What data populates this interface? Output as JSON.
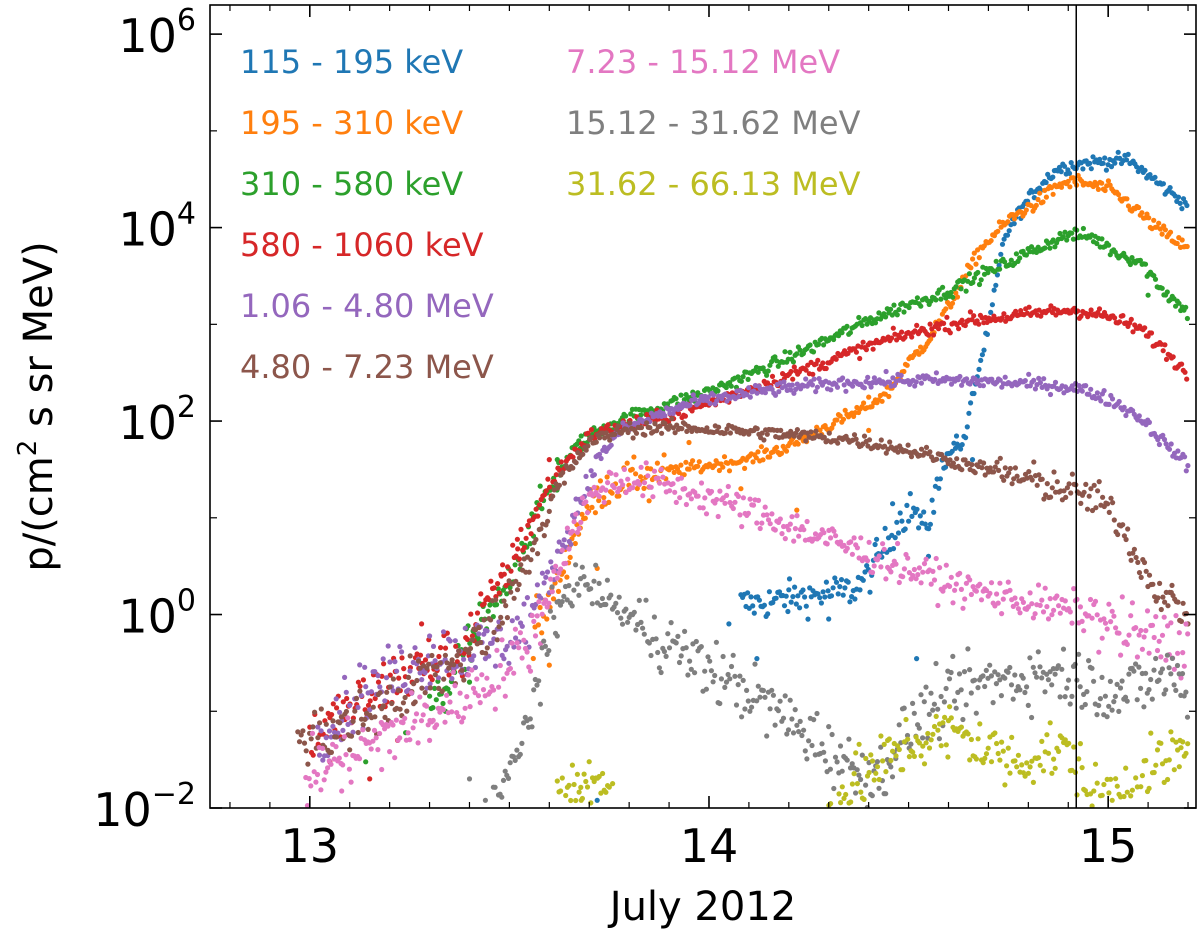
{
  "chart_data": {
    "type": "scatter",
    "title": "",
    "xlabel": "July 2012",
    "ylabel": "p/(cm² s sr MeV)",
    "ylabel_parts": {
      "before": "p/(cm",
      "sup": "2",
      "after": " s sr MeV)"
    },
    "xlim": [
      12.75,
      15.22
    ],
    "ylim": [
      0.01,
      2000000
    ],
    "yscale": "log",
    "x_ticks": [
      {
        "value": 13,
        "label": "13"
      },
      {
        "value": 14,
        "label": "14"
      },
      {
        "value": 15,
        "label": "15"
      }
    ],
    "y_ticks": [
      {
        "value": 0.01,
        "base": "10",
        "exp": "−2"
      },
      {
        "value": 1,
        "base": "10",
        "exp": "0"
      },
      {
        "value": 100,
        "base": "10",
        "exp": "2"
      },
      {
        "value": 10000,
        "base": "10",
        "exp": "4"
      },
      {
        "value": 1000000,
        "base": "10",
        "exp": "6"
      }
    ],
    "vline_x": 14.92,
    "legend_position": "top-left",
    "series": [
      {
        "name": "115 - 195 keV",
        "color": "#1f77b4",
        "points": [
          [
            14.08,
            1.3
          ],
          [
            14.12,
            1.3
          ],
          [
            14.36,
            1.8
          ],
          [
            14.4,
            2.5
          ],
          [
            14.48,
            10
          ],
          [
            14.51,
            13
          ],
          [
            14.54,
            7
          ],
          [
            14.6,
            50
          ],
          [
            14.64,
            60
          ],
          [
            14.66,
            180
          ],
          [
            14.7,
            900
          ],
          [
            14.74,
            8000
          ],
          [
            14.78,
            15000
          ],
          [
            14.82,
            25000
          ],
          [
            14.87,
            40000
          ],
          [
            14.92,
            45000
          ],
          [
            14.98,
            48000
          ],
          [
            15.05,
            50000
          ],
          [
            15.1,
            35000
          ],
          [
            15.15,
            24000
          ],
          [
            15.2,
            17000
          ]
        ],
        "scatter": [
          [
            13.72,
            0.012
          ],
          [
            14.05,
            0.8
          ],
          [
            14.12,
            0.35
          ],
          [
            14.2,
            1.8
          ],
          [
            14.3,
            0.9
          ],
          [
            14.42,
            6
          ],
          [
            14.46,
            14
          ],
          [
            14.52,
            0.35
          ],
          [
            14.55,
            4
          ],
          [
            14.62,
            70
          ],
          [
            14.66,
            40
          ]
        ]
      },
      {
        "name": "195 - 310 keV",
        "color": "#ff7f0e",
        "points": [
          [
            13.56,
            0.6
          ],
          [
            13.62,
            2
          ],
          [
            13.68,
            10
          ],
          [
            13.74,
            20
          ],
          [
            13.8,
            25
          ],
          [
            13.9,
            30
          ],
          [
            14,
            35
          ],
          [
            14.1,
            40
          ],
          [
            14.2,
            55
          ],
          [
            14.3,
            90
          ],
          [
            14.38,
            130
          ],
          [
            14.45,
            200
          ],
          [
            14.5,
            400
          ],
          [
            14.55,
            700
          ],
          [
            14.6,
            1500
          ],
          [
            14.68,
            6000
          ],
          [
            14.75,
            12000
          ],
          [
            14.82,
            18000
          ],
          [
            14.88,
            28000
          ],
          [
            14.92,
            30000
          ],
          [
            15,
            25000
          ],
          [
            15.05,
            18000
          ],
          [
            15.12,
            10000
          ],
          [
            15.2,
            6000
          ]
        ],
        "scatter": [
          [
            13.6,
            0.3
          ],
          [
            13.65,
            5
          ],
          [
            13.72,
            3
          ],
          [
            13.85,
            15
          ],
          [
            13.95,
            60
          ],
          [
            14.08,
            20
          ],
          [
            14.22,
            12
          ],
          [
            14.4,
            80
          ],
          [
            14.48,
            300
          ]
        ]
      },
      {
        "name": "310 - 580 keV",
        "color": "#2ca02c",
        "points": [
          [
            13.3,
            0.1
          ],
          [
            13.36,
            0.25
          ],
          [
            13.42,
            0.6
          ],
          [
            13.48,
            1.5
          ],
          [
            13.54,
            6
          ],
          [
            13.6,
            20
          ],
          [
            13.66,
            50
          ],
          [
            13.72,
            80
          ],
          [
            13.8,
            110
          ],
          [
            13.9,
            150
          ],
          [
            14,
            200
          ],
          [
            14.1,
            300
          ],
          [
            14.2,
            450
          ],
          [
            14.3,
            700
          ],
          [
            14.4,
            1100
          ],
          [
            14.5,
            1600
          ],
          [
            14.6,
            2200
          ],
          [
            14.7,
            3500
          ],
          [
            14.8,
            5500
          ],
          [
            14.9,
            8500
          ],
          [
            14.96,
            8000
          ],
          [
            15.02,
            5500
          ],
          [
            15.08,
            4500
          ],
          [
            15.14,
            2200
          ],
          [
            15.2,
            1300
          ]
        ],
        "scatter": [
          [
            13.14,
            0.03
          ],
          [
            13.24,
            0.06
          ],
          [
            13.34,
            0.1
          ],
          [
            13.4,
            0.2
          ],
          [
            13.5,
            2
          ],
          [
            13.56,
            10
          ],
          [
            13.62,
            40
          ],
          [
            13.68,
            70
          ],
          [
            15.1,
            2000
          ]
        ]
      },
      {
        "name": "580 - 1060 keV",
        "color": "#d62728",
        "points": [
          [
            13,
            0.05
          ],
          [
            13.1,
            0.1
          ],
          [
            13.2,
            0.2
          ],
          [
            13.3,
            0.3
          ],
          [
            13.38,
            0.4
          ],
          [
            13.44,
            1.2
          ],
          [
            13.5,
            3
          ],
          [
            13.56,
            10
          ],
          [
            13.62,
            30
          ],
          [
            13.7,
            70
          ],
          [
            13.78,
            90
          ],
          [
            13.85,
            100
          ],
          [
            13.95,
            130
          ],
          [
            14.05,
            180
          ],
          [
            14.15,
            250
          ],
          [
            14.25,
            350
          ],
          [
            14.35,
            500
          ],
          [
            14.45,
            700
          ],
          [
            14.55,
            900
          ],
          [
            14.65,
            1100
          ],
          [
            14.75,
            1200
          ],
          [
            14.85,
            1350
          ],
          [
            14.92,
            1400
          ],
          [
            15,
            1200
          ],
          [
            15.08,
            900
          ],
          [
            15.14,
            550
          ],
          [
            15.2,
            300
          ]
        ],
        "scatter": [
          [
            13.05,
            0.03
          ],
          [
            13.15,
            0.02
          ],
          [
            13.22,
            0.05
          ],
          [
            13.28,
            0.8
          ],
          [
            13.34,
            0.45
          ],
          [
            13.42,
            0.5
          ],
          [
            13.48,
            2.5
          ],
          [
            13.52,
            6
          ],
          [
            13.6,
            40
          ]
        ]
      },
      {
        "name": "1.06 - 4.80 MeV",
        "color": "#9467bd",
        "points": [
          [
            13.02,
            0.06
          ],
          [
            13.1,
            0.12
          ],
          [
            13.18,
            0.2
          ],
          [
            13.26,
            0.3
          ],
          [
            13.34,
            0.4
          ],
          [
            13.42,
            0.45
          ],
          [
            13.48,
            0.5
          ],
          [
            13.54,
            0.8
          ],
          [
            13.6,
            2.5
          ],
          [
            13.66,
            10
          ],
          [
            13.72,
            40
          ],
          [
            13.78,
            80
          ],
          [
            13.86,
            110
          ],
          [
            13.95,
            150
          ],
          [
            14.05,
            180
          ],
          [
            14.15,
            210
          ],
          [
            14.25,
            230
          ],
          [
            14.35,
            250
          ],
          [
            14.45,
            260
          ],
          [
            14.55,
            265
          ],
          [
            14.65,
            260
          ],
          [
            14.75,
            250
          ],
          [
            14.85,
            235
          ],
          [
            14.92,
            220
          ],
          [
            15,
            170
          ],
          [
            15.08,
            110
          ],
          [
            15.14,
            60
          ],
          [
            15.2,
            35
          ]
        ],
        "scatter": [
          [
            13.08,
            0.08
          ],
          [
            13.14,
            0.18
          ],
          [
            13.3,
            0.6
          ],
          [
            13.38,
            0.25
          ],
          [
            13.44,
            0.35
          ]
        ]
      },
      {
        "name": "4.80 - 7.23 MeV",
        "color": "#8c564b",
        "points": [
          [
            12.97,
            0.05
          ],
          [
            13.05,
            0.06
          ],
          [
            13.12,
            0.08
          ],
          [
            13.2,
            0.12
          ],
          [
            13.28,
            0.2
          ],
          [
            13.36,
            0.3
          ],
          [
            13.44,
            0.6
          ],
          [
            13.5,
            1.5
          ],
          [
            13.56,
            5
          ],
          [
            13.62,
            20
          ],
          [
            13.7,
            60
          ],
          [
            13.78,
            80
          ],
          [
            13.86,
            85
          ],
          [
            13.95,
            85
          ],
          [
            14.05,
            80
          ],
          [
            14.15,
            75
          ],
          [
            14.25,
            70
          ],
          [
            14.35,
            65
          ],
          [
            14.45,
            55
          ],
          [
            14.55,
            45
          ],
          [
            14.65,
            35
          ],
          [
            14.75,
            28
          ],
          [
            14.85,
            22
          ],
          [
            14.92,
            18
          ],
          [
            14.98,
            15
          ],
          [
            15.02,
            10
          ],
          [
            15.06,
            5
          ],
          [
            15.1,
            2.5
          ],
          [
            15.14,
            1.5
          ],
          [
            15.2,
            1
          ]
        ],
        "scatter": [
          [
            13.1,
            0.04
          ],
          [
            13.26,
            0.12
          ],
          [
            15.16,
            2
          ],
          [
            15.2,
            0.8
          ]
        ]
      },
      {
        "name": "7.23 - 15.12 MeV",
        "color": "#e377c2",
        "points": [
          [
            12.99,
            0.02
          ],
          [
            13.05,
            0.03
          ],
          [
            13.12,
            0.04
          ],
          [
            13.2,
            0.06
          ],
          [
            13.28,
            0.08
          ],
          [
            13.36,
            0.12
          ],
          [
            13.44,
            0.2
          ],
          [
            13.5,
            0.3
          ],
          [
            13.56,
            0.6
          ],
          [
            13.62,
            3
          ],
          [
            13.68,
            12
          ],
          [
            13.74,
            22
          ],
          [
            13.8,
            25
          ],
          [
            13.88,
            22
          ],
          [
            13.96,
            18
          ],
          [
            14.05,
            14
          ],
          [
            14.15,
            10
          ],
          [
            14.25,
            7
          ],
          [
            14.35,
            5
          ],
          [
            14.45,
            3.5
          ],
          [
            14.55,
            2.5
          ],
          [
            14.65,
            1.8
          ],
          [
            14.75,
            1.5
          ],
          [
            14.85,
            1.2
          ],
          [
            14.92,
            1.1
          ],
          [
            15,
            0.8
          ],
          [
            15.06,
            0.6
          ],
          [
            15.12,
            0.55
          ],
          [
            15.2,
            0.5
          ]
        ],
        "scatter": [
          [
            13.08,
            0.015
          ],
          [
            13.18,
            0.025
          ],
          [
            13.3,
            0.05
          ]
        ]
      },
      {
        "name": "15.12 - 31.62 MeV",
        "color": "#7f7f7f",
        "points": [
          [
            13.46,
            0.012
          ],
          [
            13.52,
            0.03
          ],
          [
            13.58,
            0.3
          ],
          [
            13.64,
            1.8
          ],
          [
            13.68,
            2.2
          ],
          [
            13.74,
            1.5
          ],
          [
            13.82,
            0.8
          ],
          [
            13.9,
            0.5
          ],
          [
            13.98,
            0.3
          ],
          [
            14.06,
            0.2
          ],
          [
            14.14,
            0.12
          ],
          [
            14.22,
            0.07
          ],
          [
            14.3,
            0.04
          ],
          [
            14.36,
            0.025
          ],
          [
            14.42,
            0.02
          ],
          [
            14.48,
            0.05
          ],
          [
            14.54,
            0.1
          ],
          [
            14.62,
            0.15
          ],
          [
            14.7,
            0.2
          ],
          [
            14.78,
            0.22
          ],
          [
            14.86,
            0.25
          ],
          [
            14.92,
            0.22
          ],
          [
            14.98,
            0.18
          ],
          [
            15.04,
            0.15
          ],
          [
            15.1,
            0.2
          ],
          [
            15.16,
            0.25
          ],
          [
            15.2,
            0.15
          ]
        ],
        "scatter": [
          [
            13.4,
            0.02
          ],
          [
            13.44,
            0.012
          ],
          [
            13.62,
            0.6
          ]
        ]
      },
      {
        "name": "31.62 - 66.13 MeV",
        "color": "#bcbd22",
        "points": [
          [
            13.62,
            0.015
          ],
          [
            13.66,
            0.018
          ],
          [
            13.7,
            0.02
          ],
          [
            13.74,
            0.015
          ],
          [
            14.32,
            0.012
          ],
          [
            14.38,
            0.02
          ],
          [
            14.44,
            0.03
          ],
          [
            14.5,
            0.045
          ],
          [
            14.56,
            0.055
          ],
          [
            14.62,
            0.06
          ],
          [
            14.66,
            0.05
          ],
          [
            14.7,
            0.04
          ],
          [
            14.76,
            0.03
          ],
          [
            14.82,
            0.035
          ],
          [
            14.88,
            0.04
          ],
          [
            14.92,
            0.03
          ],
          [
            14.96,
            0.012
          ],
          [
            15.02,
            0.015
          ],
          [
            15.08,
            0.02
          ],
          [
            15.14,
            0.03
          ],
          [
            15.2,
            0.035
          ]
        ],
        "scatter": [
          [
            13.68,
            0.012
          ],
          [
            14.6,
            0.08
          ],
          [
            15.18,
            0.05
          ]
        ]
      }
    ]
  }
}
